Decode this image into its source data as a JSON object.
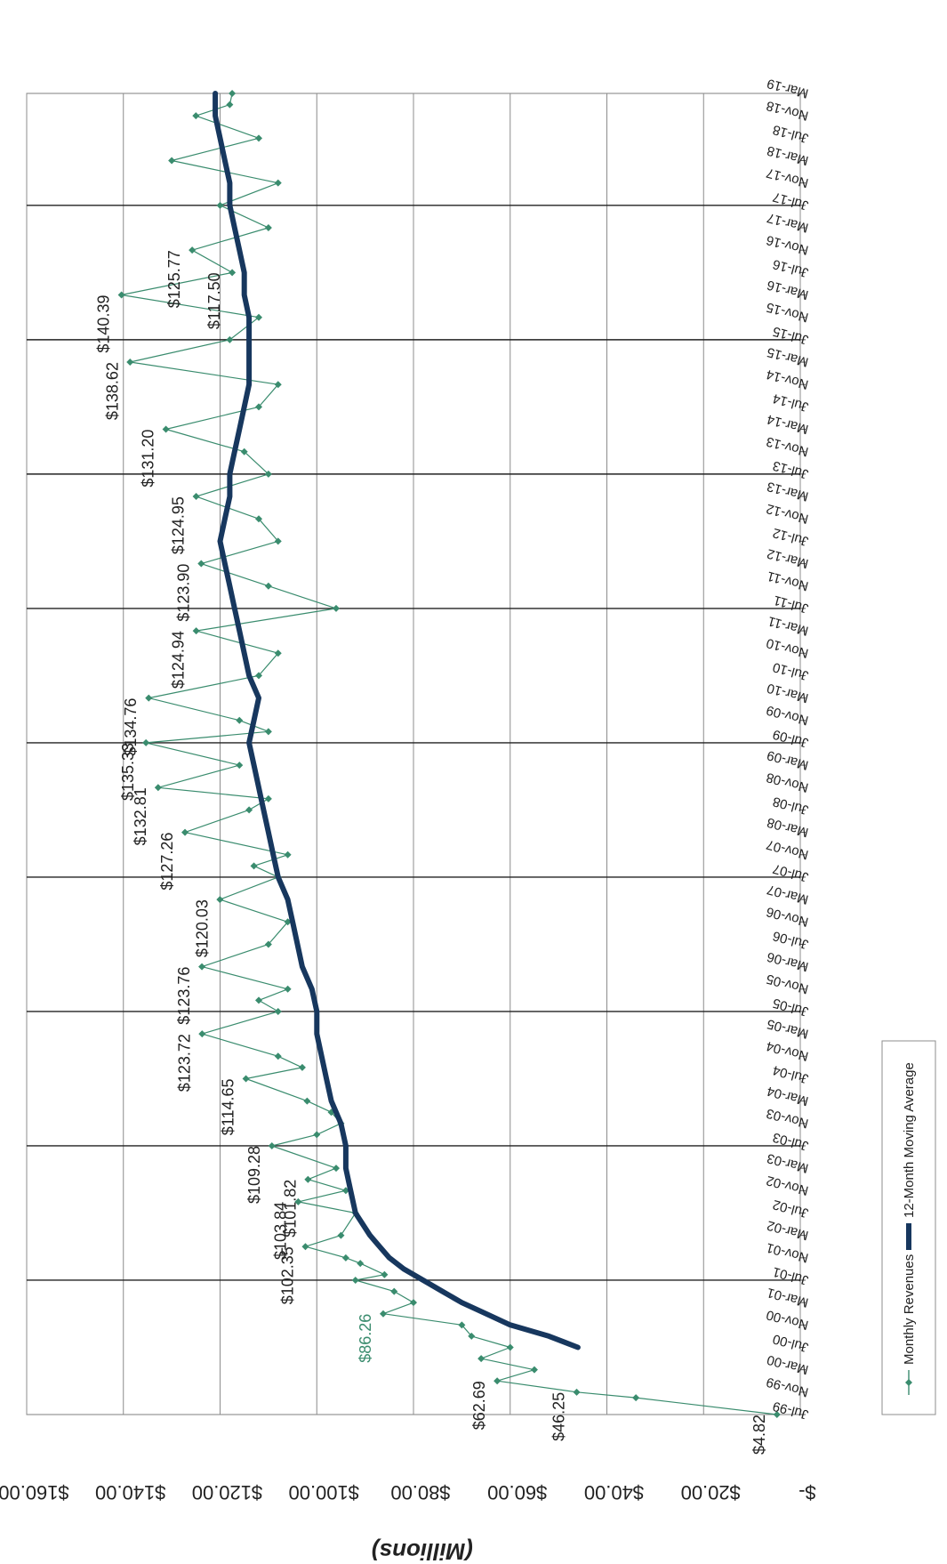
{
  "chart_data": {
    "type": "line",
    "ylabel": "(Millions)",
    "y_tick_labels": [
      "$-",
      "$20.00",
      "$40.00",
      "$60.00",
      "$80.00",
      "$100.00",
      "$120.00",
      "$140.00",
      "$160.00"
    ],
    "ylim": [
      0,
      160
    ],
    "x_tick_labels": [
      "Jul-99",
      "Nov-99",
      "Mar-00",
      "Jul-00",
      "Nov-00",
      "Mar-01",
      "Jul-01",
      "Nov-01",
      "Mar-02",
      "Jul-02",
      "Nov-02",
      "Mar-03",
      "Jul-03",
      "Nov-03",
      "Mar-04",
      "Jul-04",
      "Nov-04",
      "Mar-05",
      "Jul-05",
      "Nov-05",
      "Mar-06",
      "Jul-06",
      "Nov-06",
      "Mar-07",
      "Jul-07",
      "Nov-07",
      "Mar-08",
      "Jul-08",
      "Nov-08",
      "Mar-09",
      "Jul-09",
      "Nov-09",
      "Mar-10",
      "Jul-10",
      "Nov-10",
      "Mar-11",
      "Jul-11",
      "Nov-11",
      "Mar-12",
      "Jul-12",
      "Nov-12",
      "Mar-13",
      "Jul-13",
      "Nov-13",
      "Mar-14",
      "Jul-14",
      "Nov-14",
      "Mar-15",
      "Jul-15",
      "Nov-15",
      "Mar-16",
      "Jul-16",
      "Nov-16",
      "Mar-17",
      "Jul-17",
      "Nov-17",
      "Mar-18",
      "Jul-18",
      "Nov-18",
      "Mar-19"
    ],
    "grid": true,
    "legend_position": "bottom",
    "series": [
      {
        "name": "Monthly Revenues",
        "color": "#3a8c6e",
        "marker": "diamond",
        "x": [
          "Jul-99",
          "Oct-99",
          "Nov-99",
          "Jan-00",
          "Mar-00",
          "May-00",
          "Jul-00",
          "Sep-00",
          "Nov-00",
          "Jan-01",
          "Mar-01",
          "May-01",
          "Jul-01",
          "Aug-01",
          "Oct-01",
          "Nov-01",
          "Jan-02",
          "Mar-02",
          "Jul-02",
          "Sep-02",
          "Nov-02",
          "Jan-03",
          "Mar-03",
          "Jul-03",
          "Sep-03",
          "Nov-03",
          "Jan-04",
          "Mar-04",
          "Jul-04",
          "Sep-04",
          "Nov-04",
          "Mar-05",
          "Jul-05",
          "Sep-05",
          "Nov-05",
          "Mar-06",
          "Jul-06",
          "Nov-06",
          "Mar-07",
          "Jul-07",
          "Sep-07",
          "Nov-07",
          "Mar-08",
          "Jul-08",
          "Sep-08",
          "Nov-08",
          "Mar-09",
          "Jul-09",
          "Sep-09",
          "Nov-09",
          "Mar-10",
          "Jul-10",
          "Nov-10",
          "Mar-11",
          "Jul-11",
          "Nov-11",
          "Mar-12",
          "Jul-12",
          "Nov-12",
          "Mar-13",
          "Jul-13",
          "Nov-13",
          "Mar-14",
          "Jul-14",
          "Nov-14",
          "Mar-15",
          "Jul-15",
          "Nov-15",
          "Mar-16",
          "Jul-16",
          "Nov-16",
          "Mar-17",
          "Jul-17",
          "Nov-17",
          "Mar-18",
          "Jul-18",
          "Nov-18",
          "Jan-19",
          "Mar-19"
        ],
        "values": [
          4.82,
          34,
          46.25,
          62.69,
          55,
          66,
          60,
          68,
          70,
          86.26,
          80,
          84,
          92,
          86,
          91,
          94,
          102.35,
          95,
          92,
          103.84,
          94,
          101.82,
          96,
          109.28,
          100,
          95,
          97,
          102,
          114.65,
          103,
          108,
          123.72,
          108,
          112,
          106,
          123.76,
          110,
          106,
          120.03,
          108,
          113,
          106,
          127.26,
          114,
          110,
          132.81,
          116,
          135.33,
          110,
          116,
          134.76,
          112,
          108,
          124.94,
          96,
          110,
          123.9,
          108,
          112,
          124.95,
          110,
          115,
          131.2,
          112,
          108,
          138.62,
          118,
          112,
          140.39,
          117.5,
          125.77,
          110,
          120,
          108,
          130,
          112,
          125,
          118,
          117.5
        ]
      },
      {
        "name": "12-Month Moving Average",
        "color": "#17375e",
        "x": [
          "Jul-00",
          "Sep-00",
          "Nov-00",
          "Jan-01",
          "Mar-01",
          "May-01",
          "Jul-01",
          "Sep-01",
          "Nov-01",
          "Jan-02",
          "Mar-02",
          "Jul-02",
          "Nov-02",
          "Mar-03",
          "Jul-03",
          "Nov-03",
          "Mar-04",
          "Jul-04",
          "Nov-04",
          "Mar-05",
          "Jul-05",
          "Nov-05",
          "Mar-06",
          "Jul-06",
          "Nov-06",
          "Mar-07",
          "Jul-07",
          "Nov-07",
          "Mar-08",
          "Jul-08",
          "Nov-08",
          "Mar-09",
          "Jul-09",
          "Nov-09",
          "Mar-10",
          "Jul-10",
          "Nov-10",
          "Mar-11",
          "Jul-11",
          "Nov-11",
          "Mar-12",
          "Jul-12",
          "Nov-12",
          "Mar-13",
          "Jul-13",
          "Nov-13",
          "Mar-14",
          "Jul-14",
          "Nov-14",
          "Mar-15",
          "Jul-15",
          "Nov-15",
          "Mar-16",
          "Jul-16",
          "Nov-16",
          "Mar-17",
          "Jul-17",
          "Nov-17",
          "Mar-18",
          "Jul-18",
          "Nov-18",
          "Mar-19"
        ],
        "values": [
          46,
          52,
          60,
          65,
          70,
          74,
          78,
          82,
          85,
          87,
          89,
          92,
          93,
          94,
          94,
          95,
          97,
          98,
          99,
          100,
          100,
          101,
          103,
          104,
          105,
          106,
          108,
          109,
          110,
          111,
          112,
          113,
          114,
          113,
          112,
          114,
          115,
          116,
          117,
          118,
          119,
          120,
          119,
          118,
          118,
          117,
          116,
          115,
          114,
          114,
          114,
          114,
          115,
          115,
          116,
          117,
          118,
          118,
          119,
          120,
          121,
          121
        ]
      }
    ],
    "annotations": [
      "$4.82",
      "$46.25",
      "$62.69",
      "$86.26",
      "$102.35",
      "$103.84",
      "$101.82",
      "$109.28",
      "$114.65",
      "$123.72",
      "$123.76",
      "$120.03",
      "$127.26",
      "$132.81",
      "$135.33",
      "$134.76",
      "$124.94",
      "$123.90",
      "$124.95",
      "$131.20",
      "$138.62",
      "$140.39",
      "$125.77",
      "$117.50"
    ],
    "legend": [
      "Monthly Revenues",
      "12-Month Moving Average"
    ]
  }
}
